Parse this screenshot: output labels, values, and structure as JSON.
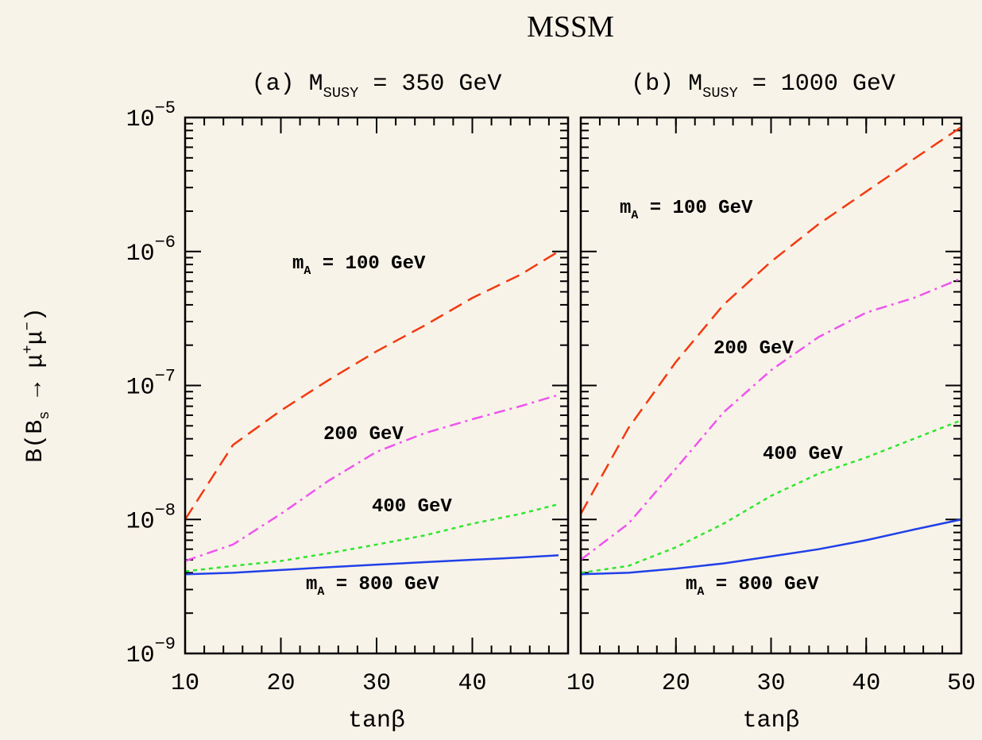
{
  "title": "MSSM",
  "chart_data": [
    {
      "type": "line",
      "subtitle": [
        {
          "text": "(a) M"
        },
        {
          "sub": "SUSY"
        },
        {
          "text": " = 350 GeV"
        }
      ],
      "y_label": [
        {
          "text": "B(B"
        },
        {
          "sub": "s"
        },
        {
          "text": " → μ"
        },
        {
          "sup": "+"
        },
        {
          "text": "μ"
        },
        {
          "sup": "−"
        },
        {
          "text": ")"
        }
      ],
      "x_label": "tanβ",
      "log_y": true,
      "xlim": [
        10,
        50
      ],
      "xticks": [
        10,
        20,
        30,
        40
      ],
      "ylim": [
        1e-09,
        1e-05
      ],
      "yticks": [
        {
          "value": 1e-09,
          "label": "10",
          "exponent": "−9"
        },
        {
          "value": 1e-08,
          "label": "10",
          "exponent": "−8"
        },
        {
          "value": 1e-07,
          "label": "10",
          "exponent": "−7"
        },
        {
          "value": 1e-06,
          "label": "10",
          "exponent": "−6"
        },
        {
          "value": 1e-05,
          "label": "10",
          "exponent": "−5"
        }
      ],
      "x": [
        10,
        15,
        20,
        25,
        30,
        35,
        40,
        45,
        49
      ],
      "series": [
        {
          "color": "#f23a12",
          "dash": "dashed",
          "values": [
            1e-08,
            3.6e-08,
            6.5e-08,
            1.1e-07,
            1.8e-07,
            2.8e-07,
            4.5e-07,
            6.7e-07,
            1e-06
          ]
        },
        {
          "color": "#ee55ee",
          "dash": "dashdot",
          "values": [
            4.9e-09,
            6.5e-09,
            1.1e-08,
            1.95e-08,
            3.2e-08,
            4.4e-08,
            5.6e-08,
            7e-08,
            8.5e-08
          ]
        },
        {
          "color": "#2ee62e",
          "dash": "dotted",
          "values": [
            4.1e-09,
            4.5e-09,
            4.9e-09,
            5.6e-09,
            6.5e-09,
            7.6e-09,
            9.3e-09,
            1.1e-08,
            1.3e-08
          ]
        },
        {
          "color": "#2040e8",
          "dash": "solid",
          "values": [
            3.9e-09,
            4e-09,
            4.2e-09,
            4.4e-09,
            4.6e-09,
            4.8e-09,
            5e-09,
            5.2e-09,
            5.4e-09
          ]
        }
      ],
      "annotations": [
        [
          {
            "text": "m"
          },
          {
            "sub": "A"
          },
          {
            "text": " = 100 GeV"
          }
        ],
        [
          {
            "text": "200 GeV"
          }
        ],
        [
          {
            "text": "400 GeV"
          }
        ],
        [
          {
            "text": "m"
          },
          {
            "sub": "A"
          },
          {
            "text": " = 800 GeV"
          }
        ]
      ]
    },
    {
      "type": "line",
      "subtitle": [
        {
          "text": "(b) M"
        },
        {
          "sub": "SUSY"
        },
        {
          "text": " = 1000 GeV"
        }
      ],
      "x_label": "tanβ",
      "log_y": true,
      "xlim": [
        10,
        50
      ],
      "xticks": [
        10,
        20,
        30,
        40,
        50
      ],
      "ylim": [
        1e-09,
        1e-05
      ],
      "x": [
        10,
        15,
        20,
        25,
        30,
        35,
        40,
        45,
        50
      ],
      "series": [
        {
          "color": "#f23a12",
          "dash": "dashed",
          "values": [
            1.1e-08,
            4.8e-08,
            1.5e-07,
            4e-07,
            8.4e-07,
            1.6e-06,
            2.8e-06,
            4.9e-06,
            8.5e-06
          ]
        },
        {
          "color": "#ee55ee",
          "dash": "dashdot",
          "values": [
            5e-09,
            9.3e-09,
            2.4e-08,
            6.3e-08,
            1.3e-07,
            2.3e-07,
            3.5e-07,
            4.5e-07,
            6.3e-07
          ]
        },
        {
          "color": "#2ee62e",
          "dash": "dotted",
          "values": [
            4e-09,
            4.5e-09,
            6.2e-09,
            9.3e-09,
            1.5e-08,
            2.2e-08,
            2.9e-08,
            4e-08,
            5.5e-08
          ]
        },
        {
          "color": "#2040e8",
          "dash": "solid",
          "values": [
            3.9e-09,
            4e-09,
            4.3e-09,
            4.7e-09,
            5.3e-09,
            6e-09,
            7e-09,
            8.4e-09,
            1e-08
          ]
        }
      ],
      "annotations": [
        [
          {
            "text": "m"
          },
          {
            "sub": "A"
          },
          {
            "text": " = 100 GeV"
          }
        ],
        [
          {
            "text": "200 GeV"
          }
        ],
        [
          {
            "text": "400 GeV"
          }
        ],
        [
          {
            "text": "m"
          },
          {
            "sub": "A"
          },
          {
            "text": " = 800 GeV"
          }
        ]
      ]
    }
  ]
}
